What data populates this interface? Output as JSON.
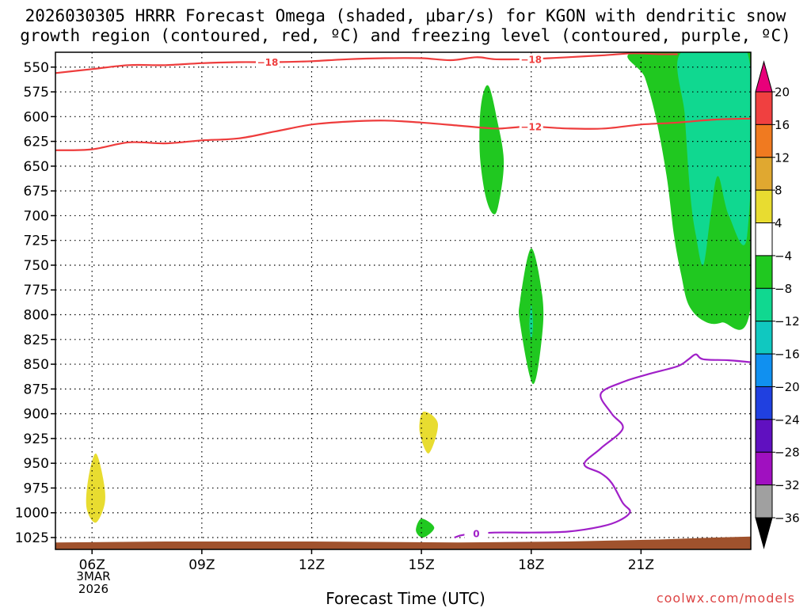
{
  "title": {
    "line1": "2026030305 HRRR Forecast Omega (shaded, μbar/s) for KGON with dendritic snow",
    "line2": "growth region (contoured, red, ºC) and freezing level (contoured, purple, ºC)"
  },
  "chart_data": {
    "type": "heatmap",
    "title": "2026030305 HRRR Forecast Omega (shaded, μbar/s) for KGON with dendritic snow growth region (contoured, red, ºC) and freezing level (contoured, purple, ºC)",
    "xlabel": "Forecast Time (UTC)",
    "ylabel": "",
    "x_ticks": [
      {
        "hour": 6,
        "label": "06Z"
      },
      {
        "hour": 9,
        "label": "09Z"
      },
      {
        "hour": 12,
        "label": "12Z"
      },
      {
        "hour": 15,
        "label": "15Z"
      },
      {
        "hour": 18,
        "label": "18Z"
      },
      {
        "hour": 21,
        "label": "21Z"
      }
    ],
    "x_range_hours": [
      5.0,
      24.0
    ],
    "date_label": [
      "3MAR",
      "2026"
    ],
    "y_ticks": [
      550,
      575,
      600,
      625,
      650,
      675,
      700,
      725,
      750,
      775,
      800,
      825,
      850,
      875,
      900,
      925,
      950,
      975,
      1000,
      1025
    ],
    "y_range_hpa": [
      535,
      1037
    ],
    "grid": true,
    "colorbar": {
      "labels": [
        "20",
        "16",
        "12",
        "8",
        "4",
        "−4",
        "−8",
        "−12",
        "−16",
        "−20",
        "−24",
        "−28",
        "−32",
        "−36"
      ],
      "colors": [
        "#e8007a",
        "#f04040",
        "#f07a20",
        "#e0a830",
        "#e8dc30",
        "#ffffff",
        "#20c820",
        "#10d890",
        "#10c8c0",
        "#1090f0",
        "#2040e0",
        "#6010c0",
        "#a010c0",
        "#a0a0a0",
        "#000000"
      ]
    },
    "shaded_regions": [
      {
        "name": "omega -4 to -8",
        "color": "#20c820",
        "points": [
          [
            16.7,
            575
          ],
          [
            16.85,
            570
          ],
          [
            17.05,
            600
          ],
          [
            17.25,
            645
          ],
          [
            17.1,
            690
          ],
          [
            16.95,
            698
          ],
          [
            16.75,
            680
          ],
          [
            16.6,
            640
          ],
          [
            16.6,
            600
          ]
        ]
      },
      {
        "name": "omega -4 to -8",
        "color": "#20c820",
        "points": [
          [
            18.0,
            733
          ],
          [
            18.3,
            780
          ],
          [
            18.3,
            820
          ],
          [
            18.05,
            870
          ],
          [
            17.7,
            810
          ],
          [
            17.7,
            785
          ]
        ]
      },
      {
        "name": "omega -8 to -12",
        "color": "#10d890",
        "points": [
          [
            18.0,
            790
          ],
          [
            18.05,
            810
          ],
          [
            18.0,
            825
          ],
          [
            17.95,
            810
          ]
        ]
      },
      {
        "name": "omega -4 to -8",
        "color": "#20c820",
        "points": [
          [
            20.8,
            535
          ],
          [
            24.0,
            535
          ],
          [
            24.0,
            790
          ],
          [
            23.2,
            808
          ],
          [
            22.7,
            806
          ],
          [
            22.3,
            790
          ],
          [
            22.1,
            760
          ],
          [
            21.9,
            720
          ],
          [
            21.7,
            660
          ],
          [
            21.4,
            600
          ],
          [
            21.1,
            560
          ]
        ]
      },
      {
        "name": "omega -8 to -12",
        "color": "#10d890",
        "points": [
          [
            22.1,
            535
          ],
          [
            23.9,
            535
          ],
          [
            23.9,
            720
          ],
          [
            23.4,
            700
          ],
          [
            23.1,
            660
          ],
          [
            22.9,
            700
          ],
          [
            22.7,
            750
          ],
          [
            22.5,
            720
          ],
          [
            22.35,
            680
          ],
          [
            22.2,
            600
          ]
        ]
      },
      {
        "name": "omega 4 to 8",
        "color": "#e8dc30",
        "points": [
          [
            6.1,
            940
          ],
          [
            6.3,
            965
          ],
          [
            6.35,
            990
          ],
          [
            6.1,
            1010
          ],
          [
            5.85,
            995
          ],
          [
            5.9,
            965
          ]
        ]
      },
      {
        "name": "omega 4 to 8",
        "color": "#e8dc30",
        "points": [
          [
            15.05,
            898
          ],
          [
            15.45,
            910
          ],
          [
            15.2,
            940
          ],
          [
            14.95,
            918
          ]
        ]
      },
      {
        "name": "omega -4 to -8",
        "color": "#20c820",
        "points": [
          [
            15.0,
            1006
          ],
          [
            15.35,
            1015
          ],
          [
            15.05,
            1025
          ],
          [
            14.85,
            1018
          ]
        ]
      }
    ],
    "ground": {
      "color": "#a0522d",
      "points": [
        [
          5.0,
          1030
        ],
        [
          8.0,
          1029
        ],
        [
          12.0,
          1029
        ],
        [
          16.0,
          1030
        ],
        [
          19.0,
          1029
        ],
        [
          21.5,
          1027
        ],
        [
          23.0,
          1025
        ],
        [
          24.0,
          1024
        ]
      ]
    },
    "contours": [
      {
        "name": "-18 ºC",
        "color": "#ee3c3c",
        "label": "−18",
        "points": [
          [
            5.0,
            556
          ],
          [
            6.0,
            552
          ],
          [
            7.0,
            548
          ],
          [
            8.0,
            548
          ],
          [
            9.0,
            546
          ],
          [
            10.0,
            545
          ],
          [
            11.0,
            545
          ],
          [
            12.0,
            544
          ],
          [
            13.0,
            542
          ],
          [
            14.0,
            541
          ],
          [
            15.0,
            541
          ],
          [
            15.8,
            543
          ],
          [
            16.5,
            540
          ],
          [
            17.0,
            542
          ],
          [
            17.8,
            542
          ],
          [
            18.5,
            541
          ],
          [
            19.0,
            540
          ],
          [
            20.0,
            538
          ],
          [
            20.8,
            536
          ],
          [
            21.5,
            537
          ],
          [
            22.0,
            537
          ]
        ],
        "label_positions": [
          [
            10.8,
            545
          ],
          [
            18.0,
            542
          ]
        ]
      },
      {
        "name": "-12 ºC",
        "color": "#ee3c3c",
        "label": "−12",
        "points": [
          [
            5.0,
            634
          ],
          [
            6.0,
            633
          ],
          [
            7.0,
            626
          ],
          [
            8.0,
            627
          ],
          [
            9.0,
            624
          ],
          [
            10.0,
            622
          ],
          [
            11.0,
            615
          ],
          [
            12.0,
            608
          ],
          [
            13.0,
            605
          ],
          [
            14.0,
            604
          ],
          [
            15.0,
            606
          ],
          [
            16.0,
            609
          ],
          [
            17.0,
            612
          ],
          [
            17.5,
            611
          ],
          [
            18.0,
            610
          ],
          [
            19.0,
            612
          ],
          [
            20.0,
            612
          ],
          [
            21.0,
            608
          ],
          [
            22.0,
            606
          ],
          [
            23.0,
            603
          ],
          [
            24.0,
            602
          ]
        ],
        "label_positions": [
          [
            18.0,
            610
          ]
        ]
      },
      {
        "name": "0 ºC",
        "color": "#a020c8",
        "label": "0",
        "points": [
          [
            15.9,
            1025
          ],
          [
            16.2,
            1022
          ],
          [
            17.0,
            1020
          ],
          [
            18.0,
            1020
          ],
          [
            19.0,
            1019
          ],
          [
            19.9,
            1014
          ],
          [
            20.4,
            1008
          ],
          [
            20.7,
            999
          ],
          [
            20.5,
            990
          ],
          [
            20.2,
            970
          ],
          [
            19.9,
            960
          ],
          [
            19.45,
            951
          ],
          [
            19.9,
            935
          ],
          [
            20.5,
            915
          ],
          [
            20.2,
            900
          ],
          [
            19.9,
            880
          ],
          [
            20.5,
            868
          ],
          [
            21.2,
            860
          ],
          [
            22.0,
            852
          ],
          [
            22.3,
            845
          ],
          [
            22.5,
            840
          ],
          [
            22.7,
            845
          ],
          [
            23.4,
            846
          ],
          [
            24.0,
            848
          ]
        ],
        "label_positions": [
          [
            16.5,
            1021
          ]
        ]
      }
    ]
  },
  "xlabel": "Forecast Time (UTC)",
  "credit": "coolwx.com/models"
}
